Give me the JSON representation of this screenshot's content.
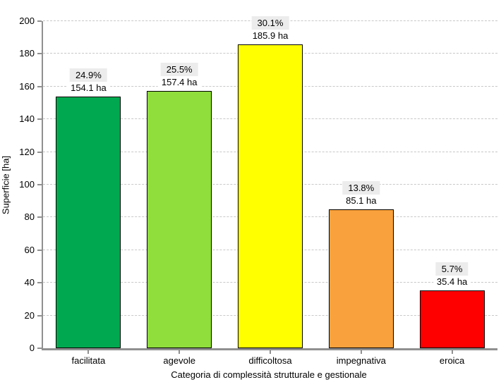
{
  "chart_data": {
    "type": "bar",
    "title": "",
    "xlabel": "Categoria di complessità strutturale e gestionale",
    "ylabel": "Superficie [ha]",
    "ylim": [
      0,
      200
    ],
    "ytick_step": 20,
    "grid": "horizontal-dashed",
    "legend": "none",
    "unit": "ha",
    "categories": [
      "facilitata",
      "agevole",
      "difficoltosa",
      "impegnativa",
      "eroica"
    ],
    "values": [
      154.1,
      157.4,
      185.9,
      85.1,
      35.4
    ],
    "percent_labels": [
      "24.9%",
      "25.5%",
      "30.1%",
      "13.8%",
      "5.7%"
    ],
    "value_labels": [
      "154.1 ha",
      "157.4 ha",
      "185.9 ha",
      "85.1 ha",
      "35.4 ha"
    ],
    "bar_colors": [
      "#00A94F",
      "#8FDE3B",
      "#FFFF00",
      "#F9A13C",
      "#FF0000"
    ],
    "bar_border_color": "#000000"
  },
  "style": {
    "axis_color": "#909090",
    "grid_color": "#C8C8C8",
    "percent_label_bg": "#ECECEC",
    "value_label_bg": "#FFFFFF",
    "background": "#FFFFFF",
    "text_color": "#000000"
  }
}
